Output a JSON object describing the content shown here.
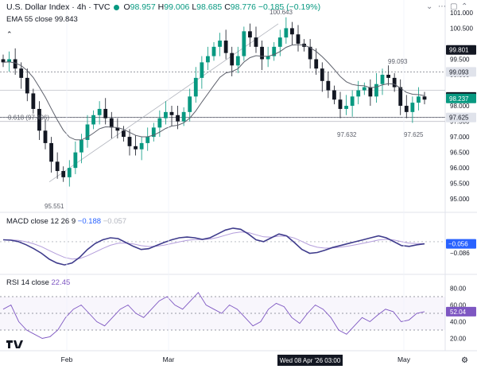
{
  "header": {
    "symbol": "U.S. Dollar Index · 4h · TVC",
    "open_label": "O",
    "open": "98.957",
    "high_label": "H",
    "high": "99.006",
    "low_label": "L",
    "low": "98.685",
    "close_label": "C",
    "close": "98.776",
    "change": "−0.185 (−0.19%)"
  },
  "ema": {
    "label": "EMA 55 close",
    "value": "99.843"
  },
  "macd": {
    "label": "MACD close 12 26 9",
    "v1": "−0.188",
    "v2": "−0.057",
    "badge1": "−0.056",
    "badge2": "−0.086"
  },
  "rsi": {
    "label": "RSI 14 close",
    "value": "22.45",
    "badge": "52.04"
  },
  "toolbar": {
    "icons": [
      "chevron-down-icon",
      "more-icon",
      "collapse-icon",
      "chevron-up-icon"
    ]
  },
  "annotations": {
    "high_label": "100.643",
    "low_label": "95.551",
    "fib_label": "0.618 (97.496)",
    "level_99093": "99.093",
    "level_97632": "97.632",
    "level_97625": "97.625"
  },
  "price_axis": {
    "ticks": [
      "101.000",
      "100.500",
      "99.500",
      "99.000",
      "98.000",
      "97.500",
      "97.000",
      "96.500",
      "96.000",
      "95.500",
      "95.000"
    ],
    "badges": [
      {
        "text": "99.801",
        "bg": "#131722",
        "fg": "#ffffff"
      },
      {
        "text": "99.093",
        "bg": "#e0e3eb",
        "fg": "#131722"
      },
      {
        "text": "98.285",
        "bg": "#131722",
        "fg": "#ffffff"
      },
      {
        "text": "98.237",
        "bg": "#089981",
        "fg": "#ffffff"
      },
      {
        "text": "97.625",
        "bg": "#e0e3eb",
        "fg": "#131722"
      }
    ]
  },
  "macd_axis": {
    "ticks": []
  },
  "rsi_axis": {
    "ticks": [
      "80.00",
      "60.00",
      "40.00",
      "20.00"
    ]
  },
  "time_axis": {
    "labels": [
      "Feb",
      "Mar",
      "May"
    ],
    "crosshair_label": "Wed 08 Apr '26  03:00"
  },
  "colors": {
    "up": "#089981",
    "down": "#131722",
    "ema": "#787b86",
    "macd": "#2a2e39",
    "signal": "#7e57c2",
    "rsi": "#7e57c2"
  },
  "chart_data": {
    "type": "candlestick",
    "series_close": [
      99.4,
      99.5,
      99.2,
      98.9,
      98.4,
      97.9,
      97.2,
      96.8,
      96.2,
      95.9,
      95.7,
      96.0,
      96.5,
      96.9,
      97.4,
      97.7,
      97.9,
      97.6,
      97.3,
      97.2,
      97.0,
      96.7,
      96.6,
      96.8,
      97.0,
      97.3,
      97.6,
      97.8,
      97.7,
      97.5,
      97.8,
      98.3,
      98.9,
      99.4,
      99.6,
      99.9,
      100.1,
      99.7,
      99.3,
      99.6,
      100.4,
      100.2,
      99.9,
      99.5,
      99.6,
      99.9,
      100.2,
      100.5,
      100.3,
      100.0,
      99.9,
      99.5,
      99.2,
      98.8,
      98.5,
      98.2,
      97.9,
      98.0,
      98.3,
      98.5,
      98.6,
      98.3,
      98.7,
      99.0,
      98.9,
      98.6,
      98.0,
      97.8,
      98.1,
      98.3,
      98.2
    ],
    "ema_period": 55,
    "levels": [
      99.093,
      97.632,
      97.625,
      97.496
    ],
    "ylim": [
      94.8,
      101.1
    ],
    "macd_values": [
      0.05,
      0.04,
      0.0,
      -0.08,
      -0.18,
      -0.3,
      -0.45,
      -0.55,
      -0.6,
      -0.55,
      -0.4,
      -0.2,
      -0.05,
      0.05,
      0.1,
      0.08,
      -0.02,
      -0.12,
      -0.2,
      -0.18,
      -0.1,
      -0.02,
      0.05,
      0.1,
      0.12,
      0.1,
      0.06,
      0.1,
      0.2,
      0.3,
      0.35,
      0.32,
      0.2,
      0.05,
      0.0,
      0.1,
      0.2,
      0.15,
      -0.02,
      -0.2,
      -0.3,
      -0.28,
      -0.22,
      -0.15,
      -0.1,
      -0.05,
      0.0,
      0.05,
      0.1,
      0.15,
      0.1,
      0.0,
      -0.1,
      -0.12,
      -0.08,
      -0.056
    ],
    "rsi_values": [
      55,
      60,
      40,
      30,
      25,
      20,
      22,
      30,
      45,
      55,
      60,
      50,
      40,
      35,
      45,
      55,
      60,
      50,
      45,
      55,
      65,
      70,
      60,
      55,
      65,
      75,
      60,
      55,
      50,
      60,
      55,
      45,
      35,
      40,
      55,
      62,
      58,
      45,
      38,
      50,
      60,
      55,
      45,
      30,
      25,
      35,
      45,
      40,
      48,
      55,
      52,
      40,
      42,
      50,
      52.04
    ]
  }
}
